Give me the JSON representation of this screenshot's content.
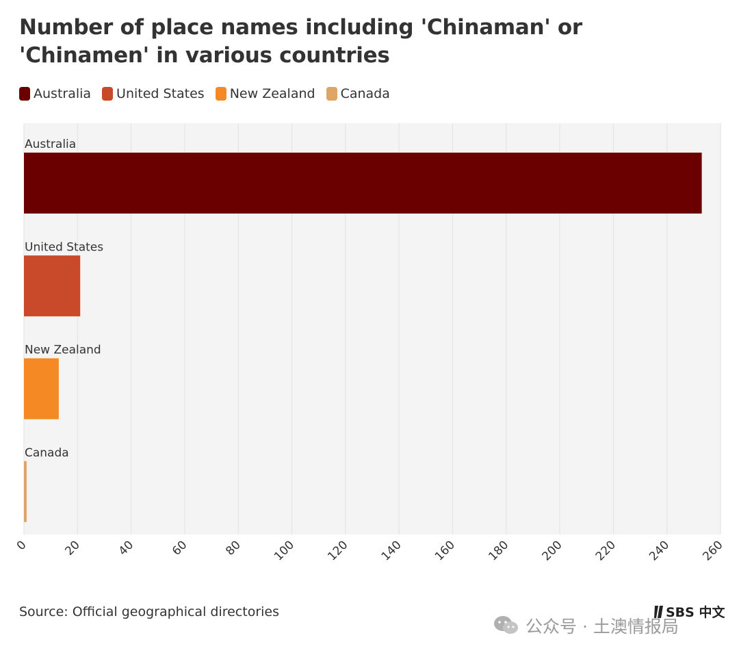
{
  "colors": {
    "Australia": "#6b0000",
    "United States": "#c94a2a",
    "New Zealand": "#f58a24",
    "Canada": "#dda666"
  },
  "chart_data": {
    "type": "bar",
    "orientation": "horizontal",
    "title": "Number of place names including 'Chinaman' or 'Chinamen' in various countries",
    "categories": [
      "Australia",
      "United States",
      "New Zealand",
      "Canada"
    ],
    "values": [
      253,
      21,
      13,
      1
    ],
    "xlim": [
      0,
      260
    ],
    "xticks": [
      "0",
      "20",
      "40",
      "60",
      "80",
      "100",
      "120",
      "140",
      "160",
      "180",
      "200",
      "220",
      "240",
      "260"
    ],
    "xlabel": "",
    "ylabel": "",
    "grid": true,
    "legend": [
      "Australia",
      "United States",
      "New Zealand",
      "Canada"
    ],
    "legend_position": "top-left",
    "source": "Source: Official geographical directories"
  },
  "logo": {
    "text": "SBS 中文"
  },
  "watermark": {
    "text": "公众号 · 土澳情报局"
  }
}
